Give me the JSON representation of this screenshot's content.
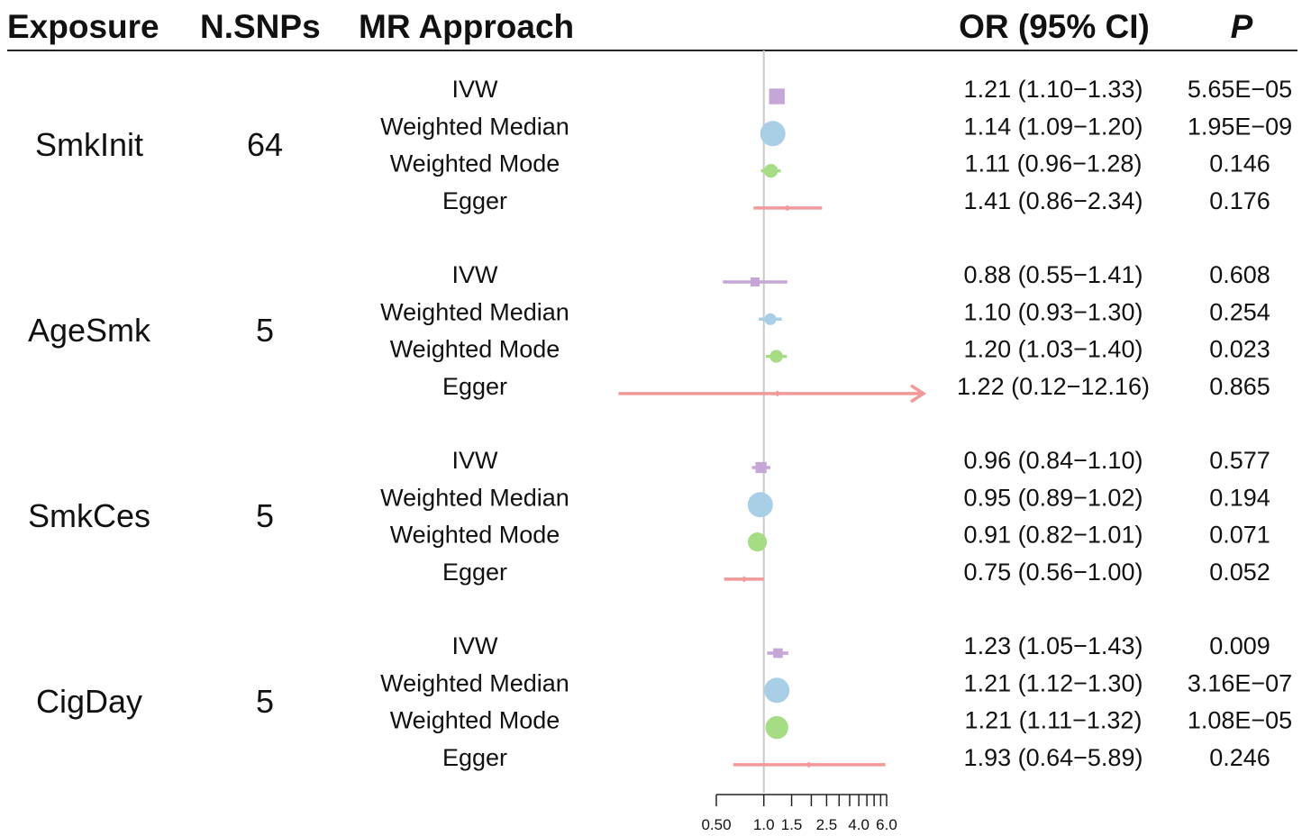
{
  "headers": {
    "exposure": "Exposure",
    "nsnps": "N.SNPs",
    "approach": "MR Approach",
    "or_ci": "OR (95% CI)",
    "p": "P"
  },
  "colors": {
    "IVW": "#c6a6d6",
    "Weighted Median": "#a9cfe6",
    "Weighted Mode": "#a6dc84",
    "Egger": "#f29a9a",
    "ref_line": "#c8c8c8"
  },
  "chart_data": {
    "type": "forest",
    "x_scale": "log",
    "x_ticks": [
      "0.50",
      "1.0",
      "1.5",
      "2.5",
      "4.0",
      "6.0"
    ],
    "reference_value": 1.0,
    "groups": [
      {
        "exposure": "SmkInit",
        "n_snps": "64",
        "rows": [
          {
            "method": "IVW",
            "or": 1.21,
            "lo": 1.1,
            "hi": 1.33,
            "or_ci_text": "1.21 (1.10−1.33)",
            "p": "5.65E−05"
          },
          {
            "method": "Weighted Median",
            "or": 1.14,
            "lo": 1.09,
            "hi": 1.2,
            "or_ci_text": "1.14 (1.09−1.20)",
            "p": "1.95E−09"
          },
          {
            "method": "Weighted Mode",
            "or": 1.11,
            "lo": 0.96,
            "hi": 1.28,
            "or_ci_text": "1.11 (0.96−1.28)",
            "p": "0.146"
          },
          {
            "method": "Egger",
            "or": 1.41,
            "lo": 0.86,
            "hi": 2.34,
            "or_ci_text": "1.41 (0.86−2.34)",
            "p": "0.176"
          }
        ]
      },
      {
        "exposure": "AgeSmk",
        "n_snps": "5",
        "rows": [
          {
            "method": "IVW",
            "or": 0.88,
            "lo": 0.55,
            "hi": 1.41,
            "or_ci_text": "0.88 (0.55−1.41)",
            "p": "0.608"
          },
          {
            "method": "Weighted Median",
            "or": 1.1,
            "lo": 0.93,
            "hi": 1.3,
            "or_ci_text": "1.10 (0.93−1.30)",
            "p": "0.254"
          },
          {
            "method": "Weighted Mode",
            "or": 1.2,
            "lo": 1.03,
            "hi": 1.4,
            "or_ci_text": "1.20 (1.03−1.40)",
            "p": "0.023"
          },
          {
            "method": "Egger",
            "or": 1.22,
            "lo": 0.12,
            "hi": 12.16,
            "or_ci_text": "1.22 (0.12−12.16)",
            "p": "0.865"
          }
        ]
      },
      {
        "exposure": "SmkCes",
        "n_snps": "5",
        "rows": [
          {
            "method": "IVW",
            "or": 0.96,
            "lo": 0.84,
            "hi": 1.1,
            "or_ci_text": "0.96 (0.84−1.10)",
            "p": "0.577"
          },
          {
            "method": "Weighted Median",
            "or": 0.95,
            "lo": 0.89,
            "hi": 1.02,
            "or_ci_text": "0.95 (0.89−1.02)",
            "p": "0.194"
          },
          {
            "method": "Weighted Mode",
            "or": 0.91,
            "lo": 0.82,
            "hi": 1.01,
            "or_ci_text": "0.91 (0.82−1.01)",
            "p": "0.071"
          },
          {
            "method": "Egger",
            "or": 0.75,
            "lo": 0.56,
            "hi": 1.0,
            "or_ci_text": "0.75 (0.56−1.00)",
            "p": "0.052"
          }
        ]
      },
      {
        "exposure": "CigDay",
        "n_snps": "5",
        "rows": [
          {
            "method": "IVW",
            "or": 1.23,
            "lo": 1.05,
            "hi": 1.43,
            "or_ci_text": "1.23 (1.05−1.43)",
            "p": "0.009"
          },
          {
            "method": "Weighted Median",
            "or": 1.21,
            "lo": 1.12,
            "hi": 1.3,
            "or_ci_text": "1.21 (1.12−1.30)",
            "p": "3.16E−07"
          },
          {
            "method": "Weighted Mode",
            "or": 1.21,
            "lo": 1.11,
            "hi": 1.32,
            "or_ci_text": "1.21 (1.11−1.32)",
            "p": "1.08E−05"
          },
          {
            "method": "Egger",
            "or": 1.93,
            "lo": 0.64,
            "hi": 5.89,
            "or_ci_text": "1.93 (0.64−5.89)",
            "p": "0.246"
          }
        ]
      }
    ]
  }
}
